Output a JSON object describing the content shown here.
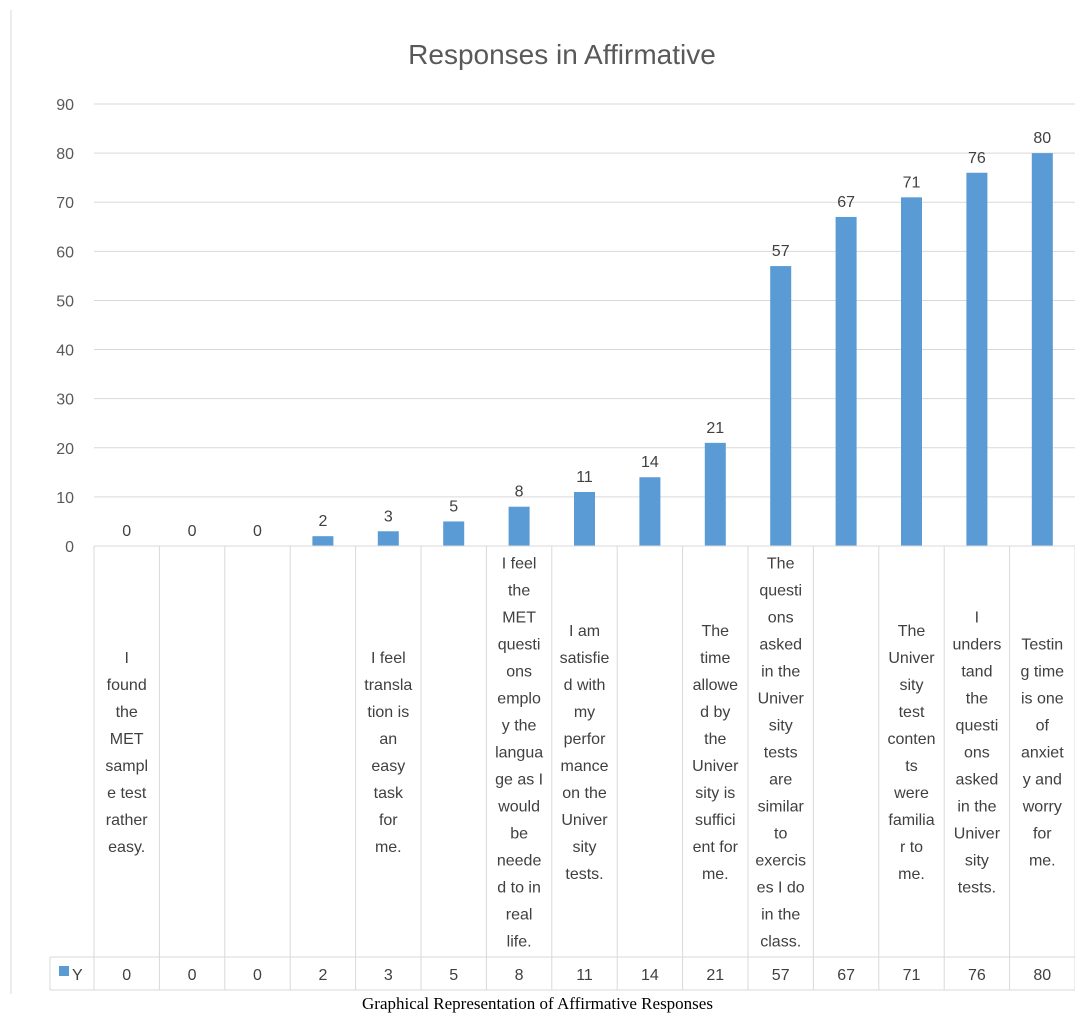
{
  "chart_data": {
    "type": "bar",
    "title": "Responses in Affirmative",
    "categories": [
      "I found the MET sample test rather easy.",
      "",
      "",
      "",
      "I feel translation is an easy task for me.",
      "",
      "I feel the MET questions employ the language as I would be needed to in real life.",
      "I am satisfied with my performance on the University tests.",
      "",
      "The time allowed by the University is sufficient for me.",
      "The questions asked in the University tests are similar to exercises I do in the class.",
      "",
      "The University test contents were familiar to me.",
      "I understand the questions asked in the University tests.",
      "Testing time is one of anxiety and worry for me."
    ],
    "category_lines": [
      [
        "I",
        "found",
        "the",
        "MET",
        "sampl",
        "e test",
        "rather",
        "easy."
      ],
      [],
      [],
      [],
      [
        "I feel",
        "transla",
        "tion is",
        "an",
        "easy",
        "task",
        "for",
        "me."
      ],
      [],
      [
        "I feel",
        "the",
        "MET",
        "questi",
        "ons",
        "emplo",
        "y the",
        "langua",
        "ge as I",
        "would",
        "be",
        "neede",
        "d to in",
        "real",
        "life."
      ],
      [
        "I am",
        "satisfie",
        "d with",
        "my",
        "perfor",
        "mance",
        "on the",
        "Univer",
        "sity",
        "tests."
      ],
      [],
      [
        "The",
        "time",
        "allowe",
        "d by",
        "the",
        "Univer",
        "sity is",
        "suffici",
        "ent for",
        "me."
      ],
      [
        "The",
        "questi",
        "ons",
        "asked",
        "in the",
        "Univer",
        "sity",
        "tests",
        "are",
        "similar",
        "to",
        "exercis",
        "es I do",
        "in the",
        "class."
      ],
      [],
      [
        "The",
        "Univer",
        "sity",
        "test",
        "conten",
        "ts",
        "were",
        "familia",
        "r to",
        "me."
      ],
      [
        "I",
        "unders",
        "tand",
        "the",
        "questi",
        "ons",
        "asked",
        "in the",
        "Univer",
        "sity",
        "tests."
      ],
      [
        "Testin",
        "g time",
        "is one",
        "of",
        "anxiet",
        "y and",
        "worry",
        "for",
        "me."
      ]
    ],
    "series": [
      {
        "name": "Y",
        "values": [
          0,
          0,
          0,
          2,
          3,
          5,
          8,
          11,
          14,
          21,
          57,
          67,
          71,
          76,
          80
        ],
        "color": "#5B9BD5"
      }
    ],
    "ylim": [
      0,
      90
    ],
    "y_ticks": [
      "0",
      "10",
      "20",
      "30",
      "40",
      "50",
      "60",
      "70",
      "80",
      "90"
    ],
    "grid": true,
    "data_table": true,
    "legend": "data-table-left"
  },
  "caption": "Graphical Representation of Affirmative Responses"
}
